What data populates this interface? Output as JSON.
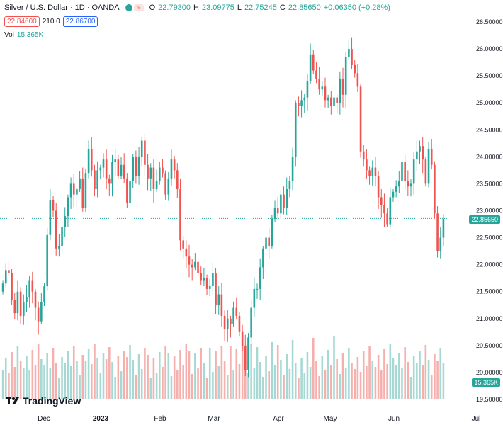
{
  "header": {
    "symbol": "Silver / U.S. Dollar · 1D · OANDA",
    "o_label": "O",
    "o": "22.79300",
    "h_label": "H",
    "h": "23.09775",
    "l_label": "L",
    "l": "22.75245",
    "c_label": "C",
    "c": "22.85650",
    "change": "+0.06350 (+0.28%)",
    "bid": "22.84600",
    "spread": "210.0",
    "ask": "22.86700",
    "vol_label": "Vol",
    "vol_value": "15.365K"
  },
  "logo": {
    "text": "TradingView"
  },
  "colors": {
    "up": "#26a69a",
    "down": "#ef5350",
    "up_vol": "#a6d9d3",
    "down_vol": "#f5b0ae"
  },
  "chart_data": {
    "type": "candlestick",
    "y_ticks": [
      "26.50000",
      "26.00000",
      "25.50000",
      "25.00000",
      "24.50000",
      "24.00000",
      "23.50000",
      "23.00000",
      "22.50000",
      "22.00000",
      "21.50000",
      "21.00000",
      "20.50000",
      "20.00000",
      "19.50000"
    ],
    "ylim": [
      19.5,
      26.5
    ],
    "x_ticks": [
      {
        "label": "Dec",
        "bold": false
      },
      {
        "label": "2023",
        "bold": true
      },
      {
        "label": "Feb",
        "bold": false
      },
      {
        "label": "Mar",
        "bold": false
      },
      {
        "label": "Apr",
        "bold": false
      },
      {
        "label": "May",
        "bold": false
      },
      {
        "label": "Jun",
        "bold": false
      },
      {
        "label": "Jul",
        "bold": false
      }
    ],
    "last_price": "22.85650",
    "last_volume": "15.365K",
    "closes": [
      21.65,
      21.9,
      21.85,
      21.35,
      21.1,
      21.5,
      21.05,
      21.3,
      21.4,
      21.7,
      21.5,
      21.2,
      20.95,
      21.3,
      21.6,
      22.55,
      23.2,
      23.0,
      22.3,
      22.35,
      22.7,
      22.9,
      23.25,
      23.5,
      23.3,
      23.4,
      23.6,
      23.05,
      23.7,
      24.15,
      23.75,
      23.4,
      23.75,
      23.8,
      23.95,
      23.6,
      23.5,
      23.9,
      23.95,
      23.65,
      23.85,
      23.6,
      23.15,
      23.55,
      24.0,
      23.65,
      24.0,
      24.3,
      23.85,
      23.6,
      23.8,
      23.4,
      23.55,
      23.8,
      23.7,
      23.3,
      23.6,
      23.95,
      23.75,
      23.4,
      22.45,
      22.3,
      22.15,
      22.0,
      21.95,
      22.05,
      21.85,
      21.7,
      21.75,
      21.55,
      21.6,
      21.85,
      21.25,
      21.45,
      21.05,
      20.8,
      21.0,
      20.9,
      21.2,
      21.05,
      20.75,
      20.5,
      20.05,
      20.65,
      21.2,
      21.55,
      21.55,
      21.95,
      22.3,
      22.5,
      22.35,
      22.85,
      23.05,
      22.95,
      23.3,
      23.05,
      23.4,
      23.55,
      24.0,
      25.0,
      24.95,
      25.05,
      25.1,
      25.4,
      25.9,
      25.6,
      25.45,
      25.25,
      25.3,
      25.05,
      25.1,
      24.95,
      25.1,
      25.0,
      25.45,
      25.15,
      25.85,
      26.0,
      25.7,
      25.55,
      25.3,
      24.1,
      23.95,
      23.75,
      23.65,
      23.8,
      23.65,
      23.25,
      23.1,
      22.95,
      22.75,
      23.25,
      23.35,
      23.45,
      23.55,
      23.9,
      23.55,
      23.45,
      23.5,
      23.95,
      24.1,
      24.2,
      23.95,
      23.5,
      24.15,
      23.85,
      22.95,
      22.25,
      22.5,
      22.85
    ]
  }
}
